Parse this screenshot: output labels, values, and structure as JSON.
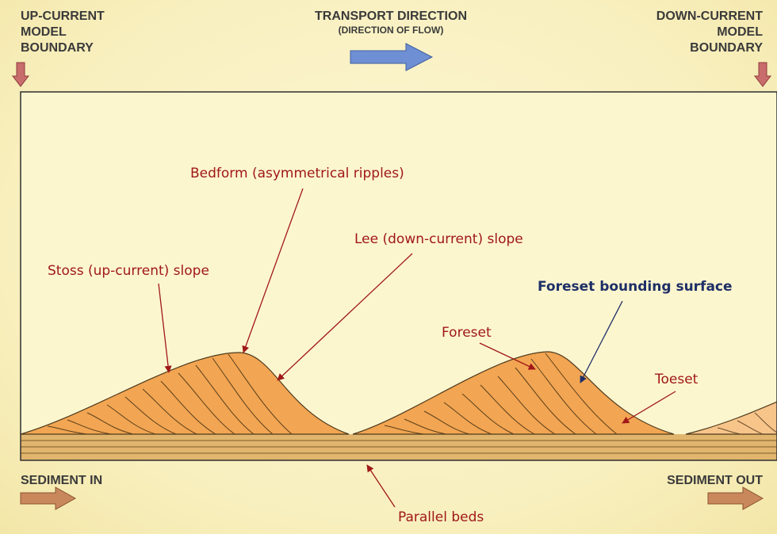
{
  "header": {
    "up_boundary": [
      "UP-CURRENT",
      "MODEL",
      "BOUNDARY"
    ],
    "down_boundary": [
      "DOWN-CURRENT",
      "MODEL",
      "BOUNDARY"
    ],
    "transport_title": "TRANSPORT DIRECTION",
    "transport_subtitle": "(DIRECTION OF FLOW)"
  },
  "footer": {
    "sediment_in": "SEDIMENT IN",
    "sediment_out": "SEDIMENT OUT"
  },
  "labels": {
    "bedform": "Bedform (asymmetrical ripples)",
    "lee": "Lee (down-current) slope",
    "stoss": "Stoss (up-current) slope",
    "foreset_bounding": "Foreset bounding surface",
    "foreset": "Foreset",
    "toeset": "Toeset",
    "parallel_beds": "Parallel beds"
  },
  "colors": {
    "flow_arrow": "#6f8fd4",
    "boundary_arrow": "#c96c6c",
    "sediment_arrow": "#c9875c",
    "ripple_fill": "#f2a552",
    "bed_fill": "#e1b56d",
    "label_red": "#a01818",
    "label_blue": "#1e2f66"
  }
}
